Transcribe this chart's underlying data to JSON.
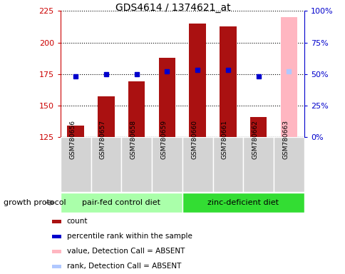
{
  "title": "GDS4614 / 1374621_at",
  "samples": [
    "GSM780656",
    "GSM780657",
    "GSM780658",
    "GSM780659",
    "GSM780660",
    "GSM780661",
    "GSM780662",
    "GSM780663"
  ],
  "counts": [
    134,
    157,
    169,
    188,
    215,
    213,
    141,
    220
  ],
  "ranks": [
    48,
    50,
    50,
    52,
    53,
    53,
    48,
    52
  ],
  "absent_flags": [
    false,
    false,
    false,
    false,
    false,
    false,
    false,
    true
  ],
  "groups": [
    {
      "label": "pair-fed control diet",
      "start": 0,
      "end": 4,
      "color": "#aaffaa"
    },
    {
      "label": "zinc-deficient diet",
      "start": 4,
      "end": 8,
      "color": "#33dd33"
    }
  ],
  "group_protocol_label": "growth protocol",
  "bar_color": "#aa1111",
  "absent_bar_color": "#ffb6c1",
  "dot_color": "#0000cc",
  "absent_dot_color": "#b0c8ff",
  "ylim_left": [
    125,
    225
  ],
  "ylim_right": [
    0,
    100
  ],
  "yticks_left": [
    125,
    150,
    175,
    200,
    225
  ],
  "yticks_right": [
    0,
    25,
    50,
    75,
    100
  ],
  "plot_bg": "#ffffff",
  "legend_items": [
    {
      "label": "count",
      "color": "#aa1111"
    },
    {
      "label": "percentile rank within the sample",
      "color": "#0000cc"
    },
    {
      "label": "value, Detection Call = ABSENT",
      "color": "#ffb6c1"
    },
    {
      "label": "rank, Detection Call = ABSENT",
      "color": "#b0c8ff"
    }
  ]
}
